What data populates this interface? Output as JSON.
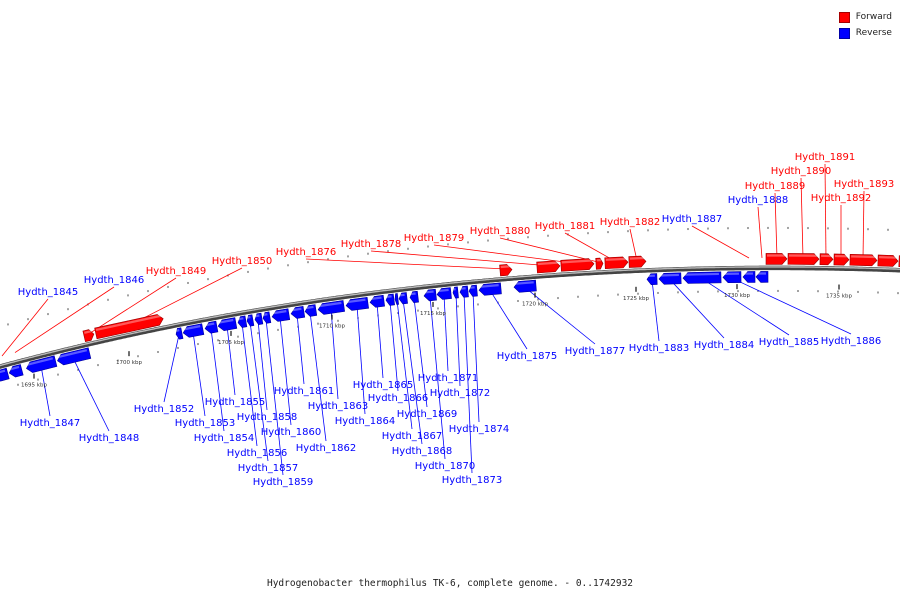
{
  "legend": {
    "forward_label": "Forward",
    "reverse_label": "Reverse",
    "forward_color": "#ff0000",
    "reverse_color": "#0000ff"
  },
  "caption": "Hydrogenobacter thermophilus TK-6, complete genome. - 0..1742932",
  "axis": {
    "tick_labels": [
      "1695 kbp",
      "1700 kbp",
      "1705 kbp",
      "1710 kbp",
      "1715 kbp",
      "1720 kbp",
      "1725 kbp",
      "1730 kbp",
      "1735 kbp"
    ]
  },
  "genes": {
    "forward": [
      "Hydth_1849",
      "Hydth_1850",
      "Hydth_1876",
      "Hydth_1878",
      "Hydth_1879",
      "Hydth_1880",
      "Hydth_1881",
      "Hydth_1882",
      "Hydth_1889",
      "Hydth_1890",
      "Hydth_1891",
      "Hydth_1892",
      "Hydth_1893"
    ],
    "reverse": [
      "Hydth_1845",
      "Hydth_1846",
      "Hydth_1847",
      "Hydth_1848",
      "Hydth_1852",
      "Hydth_1853",
      "Hydth_1854",
      "Hydth_1855",
      "Hydth_1856",
      "Hydth_1857",
      "Hydth_1858",
      "Hydth_1859",
      "Hydth_1860",
      "Hydth_1861",
      "Hydth_1862",
      "Hydth_1863",
      "Hydth_1864",
      "Hydth_1865",
      "Hydth_1866",
      "Hydth_1867",
      "Hydth_1868",
      "Hydth_1869",
      "Hydth_1870",
      "Hydth_1871",
      "Hydth_1872",
      "Hydth_1873",
      "Hydth_1874",
      "Hydth_1875",
      "Hydth_1877",
      "Hydth_1883",
      "Hydth_1884",
      "Hydth_1885",
      "Hydth_1886",
      "Hydth_1887",
      "Hydth_1888"
    ]
  }
}
